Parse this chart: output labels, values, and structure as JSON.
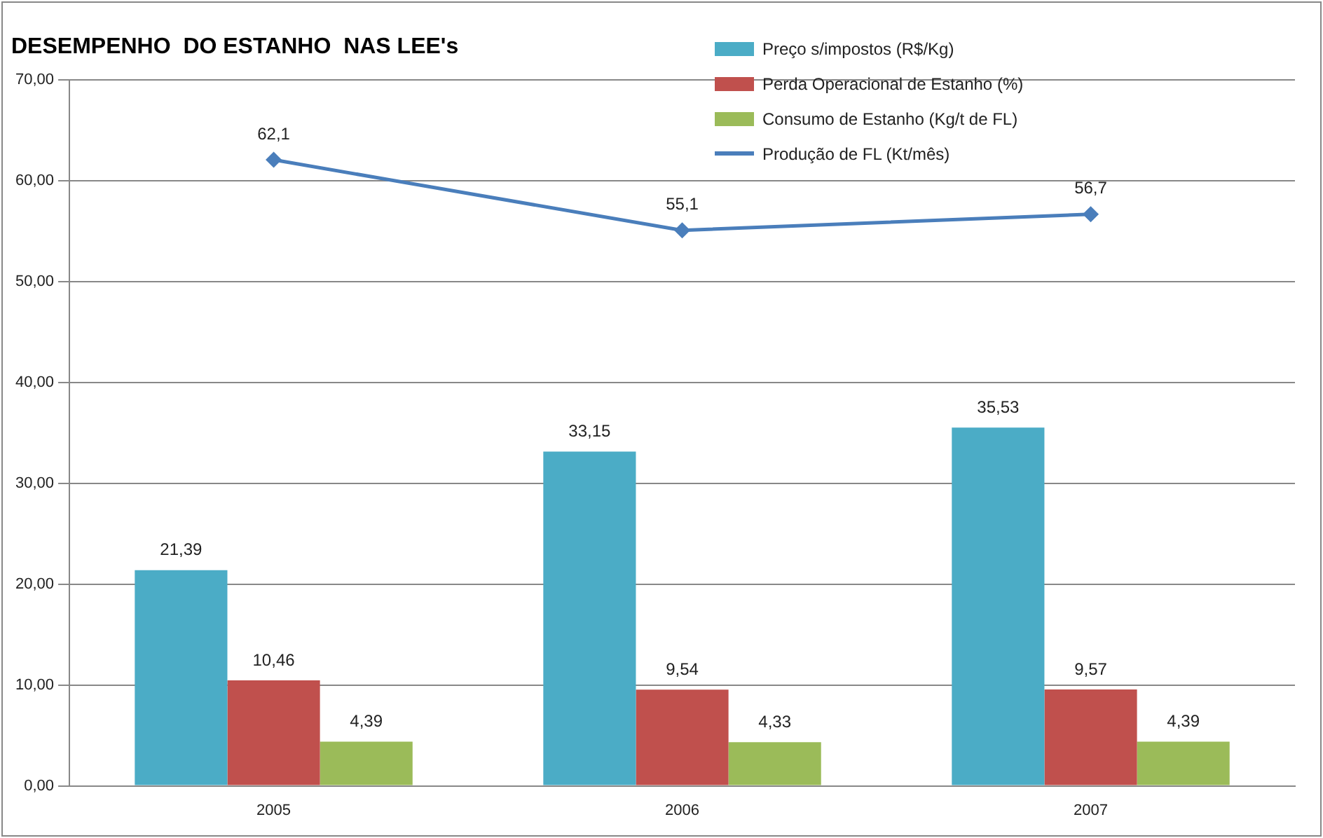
{
  "chart_data": {
    "type": "bar",
    "title": "DESEMPENHO  DO ESTANHO  NAS LEE's",
    "categories": [
      "2005",
      "2006",
      "2007"
    ],
    "series": [
      {
        "name": "Preço s/impostos (R$/Kg)",
        "color": "#4bacc6",
        "values": [
          21.39,
          33.15,
          35.53
        ],
        "value_labels": [
          "21,39",
          "33,15",
          "35,53"
        ]
      },
      {
        "name": "Perda Operacional de Estanho (%)",
        "color": "#c0504d",
        "values": [
          10.46,
          9.54,
          9.57
        ],
        "value_labels": [
          "10,46",
          "9,54",
          "9,57"
        ]
      },
      {
        "name": "Consumo de Estanho (Kg/t de FL)",
        "color": "#9bbb59",
        "values": [
          4.39,
          4.33,
          4.39
        ],
        "value_labels": [
          "4,39",
          "4,33",
          "4,39"
        ]
      },
      {
        "name": "Produção de FL (Kt/mês)",
        "type": "line",
        "color": "#4a7ebb",
        "values": [
          62.1,
          55.1,
          56.7
        ],
        "value_labels": [
          "62,1",
          "55,1",
          "56,7"
        ],
        "marker": "diamond"
      }
    ],
    "ylim": [
      0,
      70
    ],
    "yticks": [
      {
        "value": 0,
        "label": "0,00"
      },
      {
        "value": 10,
        "label": "10,00"
      },
      {
        "value": 20,
        "label": "20,00"
      },
      {
        "value": 30,
        "label": "30,00"
      },
      {
        "value": 40,
        "label": "40,00"
      },
      {
        "value": 50,
        "label": "50,00"
      },
      {
        "value": 60,
        "label": "60,00"
      },
      {
        "value": 70,
        "label": "70,00"
      }
    ],
    "grid": "y",
    "legend": "top right"
  }
}
